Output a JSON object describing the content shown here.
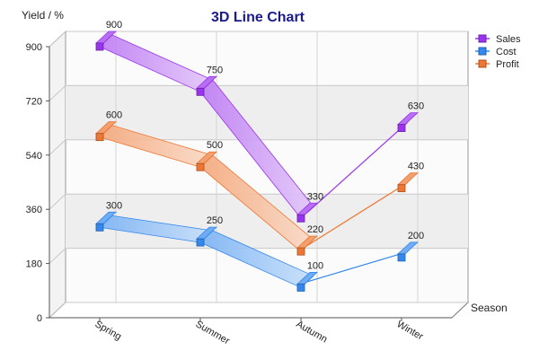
{
  "chart_data": {
    "type": "line",
    "title": "3D Line Chart",
    "xlabel": "Season",
    "ylabel": "Yield / %",
    "categories": [
      "Spring",
      "Summer",
      "Autumn",
      "Winter"
    ],
    "ylim": [
      0,
      900
    ],
    "yticks": [
      0,
      180,
      360,
      540,
      720,
      900
    ],
    "grid": true,
    "legend_position": "top-right",
    "series": [
      {
        "name": "Sales",
        "values": [
          900,
          750,
          330,
          630
        ],
        "color": "#9933ee"
      },
      {
        "name": "Cost",
        "values": [
          300,
          250,
          100,
          200
        ],
        "color": "#3388ee"
      },
      {
        "name": "Profit",
        "values": [
          600,
          500,
          220,
          430
        ],
        "color": "#ee7733"
      }
    ]
  },
  "colors": {
    "title": "#1a1a8c"
  }
}
